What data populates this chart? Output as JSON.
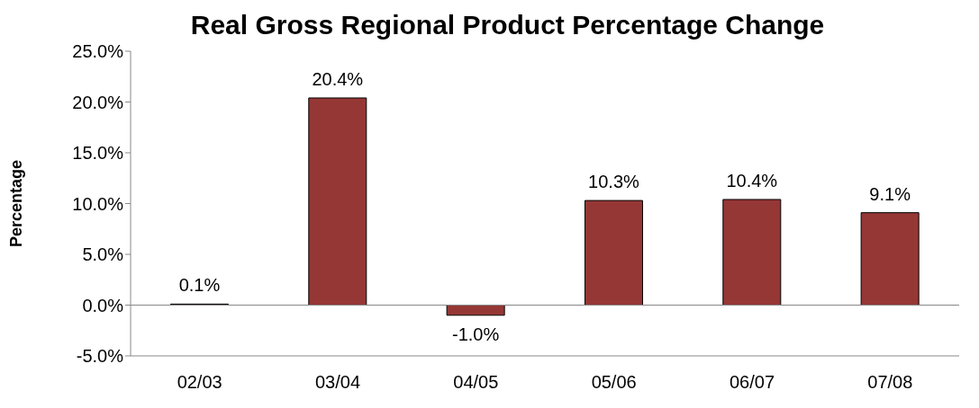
{
  "chart_data": {
    "type": "bar",
    "title": "Real Gross Regional Product Percentage Change",
    "ylabel": "Percentage",
    "categories": [
      "02/03",
      "03/04",
      "04/05",
      "05/06",
      "06/07",
      "07/08"
    ],
    "values": [
      0.1,
      20.4,
      -1.0,
      10.3,
      10.4,
      9.1
    ],
    "value_labels": [
      "0.1%",
      "20.4%",
      "-1.0%",
      "10.3%",
      "10.4%",
      "9.1%"
    ],
    "color": "#953735",
    "ylim": [
      -5,
      25
    ],
    "yticks": [
      {
        "value": -5,
        "label": "-5.0%"
      },
      {
        "value": 0,
        "label": "0.0%"
      },
      {
        "value": 5,
        "label": "5.0%"
      },
      {
        "value": 10,
        "label": "10.0%"
      },
      {
        "value": 15,
        "label": "15.0%"
      },
      {
        "value": 20,
        "label": "20.0%"
      },
      {
        "value": 25,
        "label": "25.0%"
      }
    ],
    "legend": false
  }
}
